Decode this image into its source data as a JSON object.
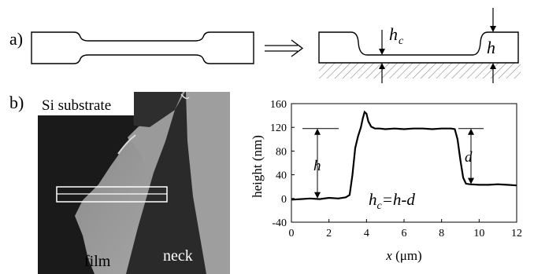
{
  "panel_a": {
    "label": "a)",
    "hc_label_main": "h",
    "hc_label_sub": "c",
    "h_label": "h"
  },
  "panel_b": {
    "label": "b)",
    "image_labels": {
      "substrate": "Si substrate",
      "film": "film",
      "neck": "neck"
    },
    "annotations": {
      "h": "h",
      "d": "d",
      "formula_main": "h",
      "formula_sub": "c",
      "formula_rest": "=h-d"
    }
  },
  "chart_data": {
    "type": "line",
    "xlabel_var": "x",
    "xlabel_unit": " (μm)",
    "ylabel": "height (nm)",
    "xlim": [
      0,
      12
    ],
    "ylim": [
      -40,
      160
    ],
    "xticks": [
      0,
      2,
      4,
      6,
      8,
      10,
      12
    ],
    "yticks": [
      -40,
      0,
      40,
      80,
      120,
      160
    ],
    "xtick_labels": [
      "0",
      "2",
      "4",
      "6",
      "8",
      "10",
      "12"
    ],
    "ytick_labels": [
      "-40",
      "0",
      "40",
      "80",
      "120",
      "160"
    ],
    "series": [
      {
        "x": [
          0,
          0.5,
          1.0,
          1.5,
          2.0,
          2.5,
          2.9,
          3.1,
          3.25,
          3.4,
          3.55,
          3.7,
          3.8,
          3.9,
          4.0,
          4.1,
          4.25,
          4.45,
          4.7,
          5.0,
          5.5,
          6.0,
          6.5,
          7.0,
          7.5,
          8.0,
          8.5,
          8.7,
          8.85,
          9.0,
          9.15,
          9.3,
          9.5,
          10.0,
          10.5,
          11.0,
          11.5,
          12.0
        ],
        "y": [
          -2,
          -1,
          0,
          -1,
          1,
          0,
          2,
          6,
          40,
          85,
          105,
          120,
          135,
          146,
          143,
          130,
          121,
          118,
          118,
          117,
          118,
          117,
          118,
          118,
          117,
          118,
          118,
          117,
          100,
          65,
          35,
          25,
          24,
          23,
          23,
          24,
          23,
          22
        ]
      }
    ]
  }
}
